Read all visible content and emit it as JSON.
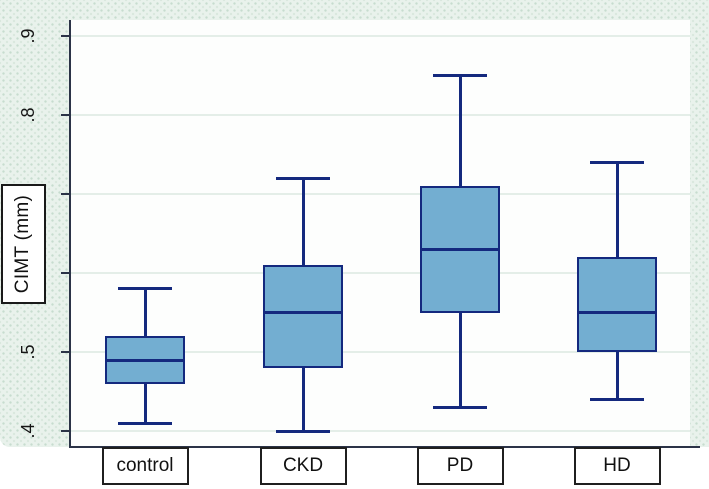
{
  "chart_data": {
    "type": "box",
    "title": "",
    "xlabel": "",
    "ylabel": "CIMT (mm)",
    "ylim": [
      0.38,
      0.92
    ],
    "yticks": [
      0.9,
      0.8,
      0.7,
      0.6,
      0.5,
      0.4
    ],
    "ytick_labels": [
      ".9",
      ".8",
      ".7",
      ".6",
      ".5",
      ".4"
    ],
    "grid": true,
    "legend_position": "none",
    "categories": [
      "control",
      "CKD",
      "PD",
      "HD"
    ],
    "boxes": [
      {
        "category": "control",
        "whisker_low": 0.41,
        "q1": 0.46,
        "median": 0.49,
        "q3": 0.52,
        "whisker_high": 0.58
      },
      {
        "category": "CKD",
        "whisker_low": 0.4,
        "q1": 0.48,
        "median": 0.55,
        "q3": 0.61,
        "whisker_high": 0.72
      },
      {
        "category": "PD",
        "whisker_low": 0.43,
        "q1": 0.55,
        "median": 0.63,
        "q3": 0.71,
        "whisker_high": 0.85
      },
      {
        "category": "HD",
        "whisker_low": 0.44,
        "q1": 0.5,
        "median": 0.55,
        "q3": 0.62,
        "whisker_high": 0.74
      }
    ],
    "colors": {
      "box_fill": "#73aed1",
      "box_border": "#14297e",
      "median": "#14297e",
      "whisker": "#14297e",
      "axis": "#2b3347",
      "gridline": "#e4eee8",
      "tick_label": "#151515",
      "canvas_background": "#e9f2ec",
      "plot_background": "#fdfefd",
      "label_box_background": "#ffffff",
      "label_box_border": "#1f1f1f"
    }
  }
}
